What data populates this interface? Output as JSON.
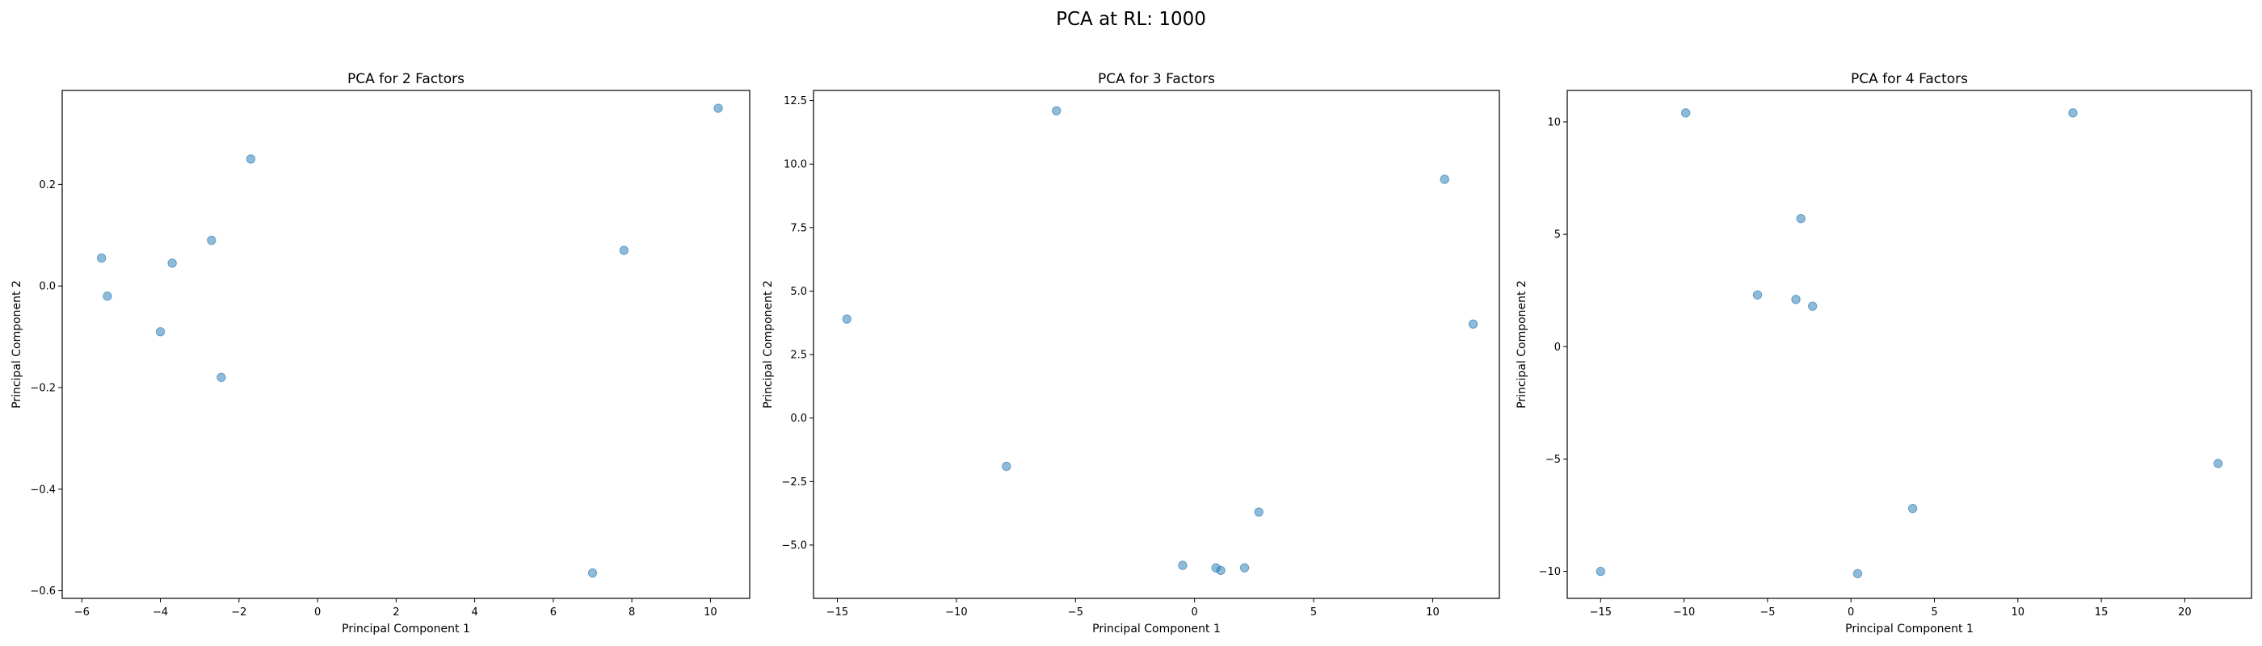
{
  "figure": {
    "suptitle": "PCA at RL: 1000"
  },
  "point_color": "#1f77b4",
  "chart_data": [
    {
      "type": "scatter",
      "title": "PCA for 2 Factors",
      "xlabel": "Principal Component 1",
      "ylabel": "Principal Component 2",
      "xlim": [
        -6.5,
        11.0
      ],
      "ylim": [
        -0.615,
        0.385
      ],
      "xticks": [
        -6,
        -4,
        -2,
        0,
        2,
        4,
        6,
        8,
        10
      ],
      "xtick_labels": [
        "−6",
        "−4",
        "−2",
        "0",
        "2",
        "4",
        "6",
        "8",
        "10"
      ],
      "yticks": [
        -0.6,
        -0.4,
        -0.2,
        0.0,
        0.2
      ],
      "ytick_labels": [
        "−0.6",
        "−0.4",
        "−0.2",
        "0.0",
        "0.2"
      ],
      "points": [
        [
          10.2,
          0.35
        ],
        [
          7.8,
          0.07
        ],
        [
          7.0,
          -0.565
        ],
        [
          -1.7,
          0.25
        ],
        [
          -2.7,
          0.09
        ],
        [
          -3.7,
          0.045
        ],
        [
          -5.5,
          0.055
        ],
        [
          -5.35,
          -0.02
        ],
        [
          -4.0,
          -0.09
        ],
        [
          -2.45,
          -0.18
        ]
      ]
    },
    {
      "type": "scatter",
      "title": "PCA for 3 Factors",
      "xlabel": "Principal Component 1",
      "ylabel": "Principal Component 2",
      "xlim": [
        -16.0,
        12.8
      ],
      "ylim": [
        -7.1,
        12.9
      ],
      "xticks": [
        -15,
        -10,
        -5,
        0,
        5,
        10
      ],
      "xtick_labels": [
        "−15",
        "−10",
        "−5",
        "0",
        "5",
        "10"
      ],
      "yticks": [
        -5.0,
        -2.5,
        0.0,
        2.5,
        5.0,
        7.5,
        10.0,
        12.5
      ],
      "ytick_labels": [
        "−5.0",
        "−2.5",
        "0.0",
        "2.5",
        "5.0",
        "7.5",
        "10.0",
        "12.5"
      ],
      "points": [
        [
          -5.8,
          12.1
        ],
        [
          10.5,
          9.4
        ],
        [
          11.7,
          3.7
        ],
        [
          -14.6,
          3.9
        ],
        [
          -7.9,
          -1.9
        ],
        [
          2.7,
          -3.7
        ],
        [
          -0.5,
          -5.8
        ],
        [
          0.9,
          -5.9
        ],
        [
          1.1,
          -6.0
        ],
        [
          2.1,
          -5.9
        ]
      ]
    },
    {
      "type": "scatter",
      "title": "PCA for 4 Factors",
      "xlabel": "Principal Component 1",
      "ylabel": "Principal Component 2",
      "xlim": [
        -17.0,
        24.0
      ],
      "ylim": [
        -11.2,
        11.4
      ],
      "xticks": [
        -15,
        -10,
        -5,
        0,
        5,
        10,
        15,
        20
      ],
      "xtick_labels": [
        "−15",
        "−10",
        "−5",
        "0",
        "5",
        "10",
        "15",
        "20"
      ],
      "yticks": [
        -10,
        -5,
        0,
        5,
        10
      ],
      "ytick_labels": [
        "−10",
        "−5",
        "0",
        "5",
        "10"
      ],
      "points": [
        [
          -9.9,
          10.4
        ],
        [
          13.3,
          10.4
        ],
        [
          -3.0,
          5.7
        ],
        [
          -5.6,
          2.3
        ],
        [
          -3.3,
          2.1
        ],
        [
          -2.3,
          1.8
        ],
        [
          22.0,
          -5.2
        ],
        [
          3.7,
          -7.2
        ],
        [
          -15.0,
          -10.0
        ],
        [
          0.4,
          -10.1
        ]
      ]
    }
  ]
}
